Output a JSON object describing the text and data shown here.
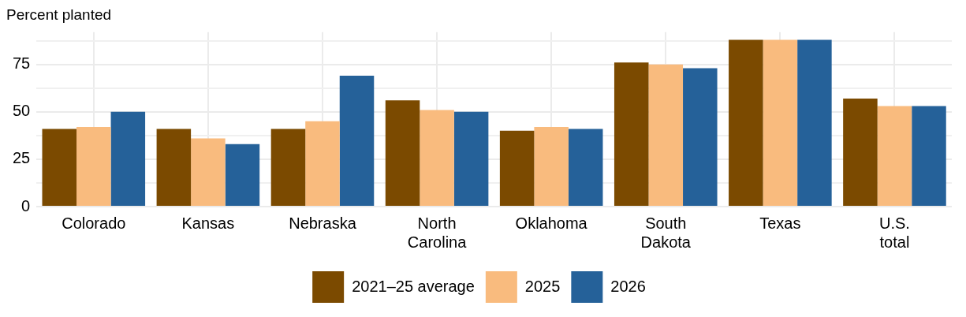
{
  "chart_data": {
    "type": "bar",
    "ylabel": "Percent planted",
    "categories": [
      "Colorado",
      "Kansas",
      "Nebraska",
      "North Carolina",
      "Oklahoma",
      "South Dakota",
      "Texas",
      "U.S. total"
    ],
    "series": [
      {
        "name": "2021–25 average",
        "color": "#7b4a00",
        "values": [
          41,
          41,
          41,
          56,
          40,
          76,
          88,
          57
        ]
      },
      {
        "name": "2025",
        "color": "#f9bb7e",
        "values": [
          42,
          36,
          45,
          51,
          42,
          75,
          88,
          53
        ]
      },
      {
        "name": "2026",
        "color": "#256199",
        "values": [
          50,
          33,
          69,
          50,
          41,
          73,
          88,
          53
        ]
      }
    ],
    "ylim": [
      0,
      92
    ],
    "yticks": [
      0,
      {
        "value": 12.5,
        "label": null
      },
      25,
      {
        "value": 37.5,
        "label": null
      },
      50,
      {
        "value": 62.5,
        "label": null
      },
      75,
      {
        "value": 87.5,
        "label": null
      }
    ],
    "grid": true,
    "legend": "bottom"
  }
}
